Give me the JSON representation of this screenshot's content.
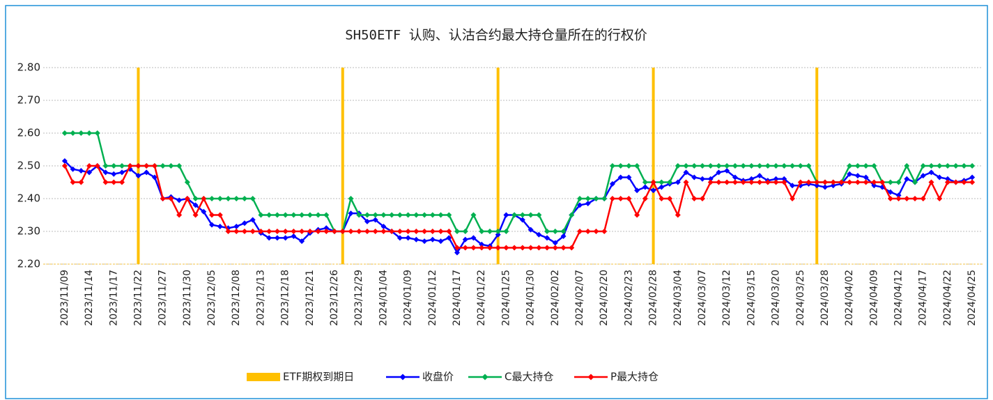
{
  "chart_data": {
    "type": "line",
    "title": "SH50ETF 认购、认沽合约最大持仓量所在的行权价",
    "categories": [
      "2023/11/09",
      null,
      null,
      "2023/11/14",
      null,
      null,
      "2023/11/17",
      null,
      null,
      "2023/11/22",
      null,
      null,
      "2023/11/27",
      null,
      null,
      "2023/11/30",
      null,
      null,
      "2023/12/05",
      null,
      null,
      "2023/12/08",
      null,
      null,
      "2023/12/13",
      null,
      null,
      "2023/12/18",
      null,
      null,
      "2023/12/21",
      null,
      null,
      "2023/12/26",
      null,
      null,
      "2023/12/29",
      null,
      null,
      "2024/01/04",
      null,
      null,
      "2024/01/09",
      null,
      null,
      "2024/01/12",
      null,
      null,
      "2024/01/17",
      null,
      null,
      "2024/01/22",
      null,
      null,
      "2024/01/25",
      null,
      null,
      "2024/01/30",
      null,
      null,
      "2024/02/02",
      null,
      null,
      "2024/02/07",
      null,
      null,
      "2024/02/20",
      null,
      null,
      "2024/02/23",
      null,
      null,
      "2024/02/28",
      null,
      null,
      "2024/03/04",
      null,
      null,
      "2024/03/07",
      null,
      null,
      "2024/03/12",
      null,
      null,
      "2024/03/15",
      null,
      null,
      "2024/03/20",
      null,
      null,
      "2024/03/25",
      null,
      null,
      "2024/03/28",
      null,
      null,
      "2024/04/02",
      null,
      null,
      "2024/04/09",
      null,
      null,
      "2024/04/12",
      null,
      null,
      "2024/04/17",
      null,
      null,
      "2024/04/22",
      null,
      null,
      "2024/04/25"
    ],
    "series": [
      {
        "name": "ETF期权到期日",
        "type": "bar",
        "color": "#ffc000",
        "values": [
          null,
          null,
          null,
          null,
          null,
          null,
          null,
          null,
          null,
          2.8,
          null,
          null,
          null,
          null,
          null,
          null,
          null,
          null,
          null,
          null,
          null,
          null,
          null,
          null,
          null,
          null,
          null,
          null,
          null,
          null,
          null,
          null,
          null,
          null,
          2.8,
          null,
          null,
          null,
          null,
          null,
          null,
          null,
          null,
          null,
          null,
          null,
          null,
          null,
          null,
          null,
          null,
          null,
          null,
          2.8,
          null,
          null,
          null,
          null,
          null,
          null,
          null,
          null,
          null,
          null,
          null,
          null,
          null,
          null,
          null,
          null,
          null,
          null,
          2.8,
          null,
          null,
          null,
          null,
          null,
          null,
          null,
          null,
          null,
          null,
          null,
          null,
          null,
          null,
          null,
          null,
          null,
          null,
          null,
          2.8,
          null,
          null,
          null,
          null,
          null,
          null,
          null,
          null,
          null,
          null,
          null,
          null,
          null,
          null,
          null,
          null,
          null,
          null,
          null
        ]
      },
      {
        "name": "收盘价",
        "type": "line",
        "color": "#0000ff",
        "values": [
          2.515,
          2.49,
          2.485,
          2.48,
          2.5,
          2.48,
          2.475,
          2.48,
          2.49,
          2.47,
          2.48,
          2.465,
          2.4,
          2.405,
          2.395,
          2.4,
          2.38,
          2.36,
          2.32,
          2.315,
          2.31,
          2.315,
          2.325,
          2.335,
          2.295,
          2.28,
          2.28,
          2.28,
          2.285,
          2.27,
          2.295,
          2.305,
          2.31,
          2.3,
          2.3,
          2.355,
          2.355,
          2.33,
          2.335,
          2.315,
          2.3,
          2.28,
          2.28,
          2.275,
          2.27,
          2.275,
          2.27,
          2.28,
          2.235,
          2.275,
          2.28,
          2.26,
          2.255,
          2.29,
          2.35,
          2.35,
          2.335,
          2.305,
          2.29,
          2.28,
          2.265,
          2.285,
          2.35,
          2.38,
          2.385,
          2.4,
          2.4,
          2.445,
          2.465,
          2.465,
          2.425,
          2.435,
          2.425,
          2.435,
          2.445,
          2.45,
          2.48,
          2.465,
          2.46,
          2.46,
          2.48,
          2.485,
          2.465,
          2.455,
          2.46,
          2.47,
          2.455,
          2.46,
          2.46,
          2.44,
          2.44,
          2.445,
          2.44,
          2.435,
          2.44,
          2.445,
          2.475,
          2.47,
          2.465,
          2.44,
          2.435,
          2.42,
          2.41,
          2.46,
          2.45,
          2.47,
          2.48,
          2.465,
          2.46,
          2.45,
          2.455,
          2.465
        ]
      },
      {
        "name": "C最大持仓",
        "type": "line",
        "color": "#00b050",
        "values": [
          2.6,
          2.6,
          2.6,
          2.6,
          2.6,
          2.5,
          2.5,
          2.5,
          2.5,
          2.5,
          2.5,
          2.5,
          2.5,
          2.5,
          2.5,
          2.45,
          2.4,
          2.4,
          2.4,
          2.4,
          2.4,
          2.4,
          2.4,
          2.4,
          2.35,
          2.35,
          2.35,
          2.35,
          2.35,
          2.35,
          2.35,
          2.35,
          2.35,
          2.3,
          2.3,
          2.4,
          2.35,
          2.35,
          2.35,
          2.35,
          2.35,
          2.35,
          2.35,
          2.35,
          2.35,
          2.35,
          2.35,
          2.35,
          2.3,
          2.3,
          2.35,
          2.3,
          2.3,
          2.3,
          2.3,
          2.35,
          2.35,
          2.35,
          2.35,
          2.3,
          2.3,
          2.3,
          2.35,
          2.4,
          2.4,
          2.4,
          2.4,
          2.5,
          2.5,
          2.5,
          2.5,
          2.45,
          2.45,
          2.45,
          2.45,
          2.5,
          2.5,
          2.5,
          2.5,
          2.5,
          2.5,
          2.5,
          2.5,
          2.5,
          2.5,
          2.5,
          2.5,
          2.5,
          2.5,
          2.5,
          2.5,
          2.5,
          2.45,
          2.45,
          2.45,
          2.45,
          2.5,
          2.5,
          2.5,
          2.5,
          2.45,
          2.45,
          2.45,
          2.5,
          2.45,
          2.5,
          2.5,
          2.5,
          2.5,
          2.5,
          2.5,
          2.5
        ]
      },
      {
        "name": "P最大持仓",
        "type": "line",
        "color": "#ff0000",
        "values": [
          2.5,
          2.45,
          2.45,
          2.5,
          2.5,
          2.45,
          2.45,
          2.45,
          2.5,
          2.5,
          2.5,
          2.5,
          2.4,
          2.4,
          2.35,
          2.4,
          2.35,
          2.4,
          2.35,
          2.35,
          2.3,
          2.3,
          2.3,
          2.3,
          2.3,
          2.3,
          2.3,
          2.3,
          2.3,
          2.3,
          2.3,
          2.3,
          2.3,
          2.3,
          2.3,
          2.3,
          2.3,
          2.3,
          2.3,
          2.3,
          2.3,
          2.3,
          2.3,
          2.3,
          2.3,
          2.3,
          2.3,
          2.3,
          2.25,
          2.25,
          2.25,
          2.25,
          2.25,
          2.25,
          2.25,
          2.25,
          2.25,
          2.25,
          2.25,
          2.25,
          2.25,
          2.25,
          2.25,
          2.3,
          2.3,
          2.3,
          2.3,
          2.4,
          2.4,
          2.4,
          2.35,
          2.4,
          2.45,
          2.4,
          2.4,
          2.35,
          2.45,
          2.4,
          2.4,
          2.45,
          2.45,
          2.45,
          2.45,
          2.45,
          2.45,
          2.45,
          2.45,
          2.45,
          2.45,
          2.4,
          2.45,
          2.45,
          2.45,
          2.45,
          2.45,
          2.45,
          2.45,
          2.45,
          2.45,
          2.45,
          2.45,
          2.4,
          2.4,
          2.4,
          2.4,
          2.4,
          2.45,
          2.4,
          2.45,
          2.45,
          2.45,
          2.45
        ]
      }
    ],
    "ylim": [
      2.2,
      2.8
    ],
    "yticks": [
      {
        "value": 2.2,
        "label": "2.20"
      },
      {
        "value": 2.3,
        "label": "2.30"
      },
      {
        "value": 2.4,
        "label": "2.40"
      },
      {
        "value": 2.5,
        "label": "2.50"
      },
      {
        "value": 2.6,
        "label": "2.60"
      },
      {
        "value": 2.7,
        "label": "2.70"
      },
      {
        "value": 2.8,
        "label": "2.80"
      }
    ],
    "grid": true,
    "legend": "bottom"
  }
}
